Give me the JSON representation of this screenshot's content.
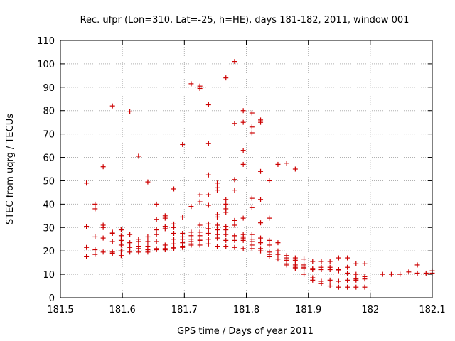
{
  "chart_data": {
    "type": "scatter",
    "title": "Rec. ufpr (Lon=310, Lat=-25, h=HE), days 181-182, 2011, window 001",
    "xlabel": "GPS time / Days of year 2011",
    "ylabel": "STEC from uqrg / TECUs",
    "xlim": [
      181.5,
      182.1
    ],
    "ylim": [
      0,
      110
    ],
    "xticks": [
      "181.5",
      "181.6",
      "181.7",
      "181.8",
      "181.9",
      "182",
      "182.1"
    ],
    "yticks": [
      "0",
      "10",
      "20",
      "30",
      "40",
      "50",
      "60",
      "70",
      "80",
      "90",
      "100",
      "110"
    ],
    "grid": true,
    "marker": "plus",
    "marker_color": "#cc0000",
    "series": [
      {
        "name": "STEC",
        "points": [
          [
            181.542,
            49
          ],
          [
            181.542,
            30.5
          ],
          [
            181.542,
            21.5
          ],
          [
            181.542,
            17.5
          ],
          [
            181.556,
            40
          ],
          [
            181.556,
            38
          ],
          [
            181.556,
            26
          ],
          [
            181.556,
            20.5
          ],
          [
            181.556,
            18.5
          ],
          [
            181.569,
            56
          ],
          [
            181.569,
            31
          ],
          [
            181.569,
            30
          ],
          [
            181.569,
            25.5
          ],
          [
            181.569,
            19.5
          ],
          [
            181.584,
            82
          ],
          [
            181.584,
            28
          ],
          [
            181.584,
            27.5
          ],
          [
            181.584,
            24
          ],
          [
            181.584,
            19.5
          ],
          [
            181.584,
            19
          ],
          [
            181.598,
            29
          ],
          [
            181.598,
            26.5
          ],
          [
            181.598,
            24.5
          ],
          [
            181.598,
            22.5
          ],
          [
            181.598,
            20
          ],
          [
            181.598,
            18
          ],
          [
            181.612,
            79.5
          ],
          [
            181.612,
            27
          ],
          [
            181.612,
            23.5
          ],
          [
            181.612,
            21.5
          ],
          [
            181.612,
            19.5
          ],
          [
            181.626,
            60.5
          ],
          [
            181.626,
            25
          ],
          [
            181.626,
            24
          ],
          [
            181.626,
            22
          ],
          [
            181.626,
            21
          ],
          [
            181.626,
            19.5
          ],
          [
            181.641,
            49.5
          ],
          [
            181.641,
            26
          ],
          [
            181.641,
            24
          ],
          [
            181.641,
            22
          ],
          [
            181.641,
            20.5
          ],
          [
            181.641,
            19.5
          ],
          [
            181.655,
            40
          ],
          [
            181.655,
            33.5
          ],
          [
            181.655,
            29
          ],
          [
            181.655,
            27
          ],
          [
            181.655,
            24
          ],
          [
            181.655,
            21
          ],
          [
            181.655,
            20.5
          ],
          [
            181.669,
            35
          ],
          [
            181.669,
            34
          ],
          [
            181.669,
            30.5
          ],
          [
            181.669,
            29.5
          ],
          [
            181.669,
            22.5
          ],
          [
            181.669,
            21
          ],
          [
            181.669,
            20.5
          ],
          [
            181.683,
            46.5
          ],
          [
            181.683,
            31.5
          ],
          [
            181.683,
            30
          ],
          [
            181.683,
            27.5
          ],
          [
            181.683,
            25
          ],
          [
            181.683,
            23
          ],
          [
            181.683,
            21.5
          ],
          [
            181.683,
            21
          ],
          [
            181.697,
            65.5
          ],
          [
            181.697,
            34.5
          ],
          [
            181.697,
            27.5
          ],
          [
            181.697,
            26
          ],
          [
            181.697,
            25
          ],
          [
            181.697,
            23.5
          ],
          [
            181.697,
            22
          ],
          [
            181.697,
            21.5
          ],
          [
            181.711,
            91.5
          ],
          [
            181.711,
            39
          ],
          [
            181.711,
            28
          ],
          [
            181.711,
            26.5
          ],
          [
            181.711,
            25
          ],
          [
            181.711,
            24
          ],
          [
            181.711,
            23
          ],
          [
            181.711,
            22.5
          ],
          [
            181.725,
            90.5
          ],
          [
            181.725,
            89.5
          ],
          [
            181.725,
            44
          ],
          [
            181.725,
            41
          ],
          [
            181.725,
            31
          ],
          [
            181.725,
            28
          ],
          [
            181.725,
            26.5
          ],
          [
            181.725,
            25
          ],
          [
            181.725,
            24.5
          ],
          [
            181.725,
            22.5
          ],
          [
            181.739,
            82.5
          ],
          [
            181.739,
            66
          ],
          [
            181.739,
            52.5
          ],
          [
            181.739,
            44
          ],
          [
            181.739,
            39.5
          ],
          [
            181.739,
            31.5
          ],
          [
            181.739,
            29.5
          ],
          [
            181.739,
            27.5
          ],
          [
            181.739,
            25
          ],
          [
            181.739,
            23
          ],
          [
            181.753,
            49
          ],
          [
            181.753,
            47
          ],
          [
            181.753,
            46
          ],
          [
            181.753,
            35.5
          ],
          [
            181.753,
            34.5
          ],
          [
            181.753,
            31
          ],
          [
            181.753,
            29
          ],
          [
            181.753,
            27
          ],
          [
            181.753,
            25.5
          ],
          [
            181.753,
            22
          ],
          [
            181.767,
            94
          ],
          [
            181.767,
            42
          ],
          [
            181.767,
            40
          ],
          [
            181.767,
            38
          ],
          [
            181.767,
            36.5
          ],
          [
            181.767,
            30.5
          ],
          [
            181.767,
            29
          ],
          [
            181.767,
            27
          ],
          [
            181.767,
            24.5
          ],
          [
            181.767,
            22
          ],
          [
            181.781,
            101
          ],
          [
            181.781,
            74.5
          ],
          [
            181.781,
            50.5
          ],
          [
            181.781,
            46
          ],
          [
            181.781,
            33
          ],
          [
            181.781,
            31
          ],
          [
            181.781,
            26.5
          ],
          [
            181.781,
            26
          ],
          [
            181.781,
            24.5
          ],
          [
            181.781,
            21.5
          ],
          [
            181.795,
            80
          ],
          [
            181.795,
            75
          ],
          [
            181.795,
            63
          ],
          [
            181.795,
            57
          ],
          [
            181.795,
            34
          ],
          [
            181.795,
            27
          ],
          [
            181.795,
            26
          ],
          [
            181.795,
            25.5
          ],
          [
            181.795,
            24.5
          ],
          [
            181.795,
            21
          ],
          [
            181.809,
            79
          ],
          [
            181.809,
            73
          ],
          [
            181.809,
            70.5
          ],
          [
            181.809,
            42.5
          ],
          [
            181.809,
            38.5
          ],
          [
            181.809,
            27
          ],
          [
            181.809,
            25
          ],
          [
            181.809,
            24
          ],
          [
            181.809,
            22.5
          ],
          [
            181.809,
            21
          ],
          [
            181.823,
            76
          ],
          [
            181.823,
            75
          ],
          [
            181.823,
            54
          ],
          [
            181.823,
            42
          ],
          [
            181.823,
            32
          ],
          [
            181.823,
            25.5
          ],
          [
            181.823,
            23.5
          ],
          [
            181.823,
            21
          ],
          [
            181.823,
            20
          ],
          [
            181.837,
            50
          ],
          [
            181.837,
            34
          ],
          [
            181.837,
            24.5
          ],
          [
            181.837,
            22.5
          ],
          [
            181.837,
            19.5
          ],
          [
            181.837,
            18.5
          ],
          [
            181.837,
            17.5
          ],
          [
            181.851,
            57
          ],
          [
            181.851,
            23.5
          ],
          [
            181.851,
            20
          ],
          [
            181.851,
            18.5
          ],
          [
            181.851,
            16.5
          ],
          [
            181.865,
            57.5
          ],
          [
            181.865,
            18
          ],
          [
            181.865,
            17
          ],
          [
            181.865,
            16
          ],
          [
            181.865,
            14.5
          ],
          [
            181.865,
            14
          ],
          [
            181.879,
            55
          ],
          [
            181.879,
            17
          ],
          [
            181.879,
            16
          ],
          [
            181.879,
            14
          ],
          [
            181.879,
            13
          ],
          [
            181.879,
            12.5
          ],
          [
            181.893,
            16.5
          ],
          [
            181.893,
            14
          ],
          [
            181.893,
            13
          ],
          [
            181.893,
            12.5
          ],
          [
            181.893,
            10
          ],
          [
            181.907,
            15.5
          ],
          [
            181.907,
            12.5
          ],
          [
            181.907,
            12
          ],
          [
            181.907,
            8.5
          ],
          [
            181.907,
            7.5
          ],
          [
            181.921,
            15.5
          ],
          [
            181.921,
            13
          ],
          [
            181.921,
            12
          ],
          [
            181.921,
            7
          ],
          [
            181.921,
            6
          ],
          [
            181.935,
            15.5
          ],
          [
            181.935,
            13
          ],
          [
            181.935,
            12
          ],
          [
            181.935,
            7.5
          ],
          [
            181.935,
            5
          ],
          [
            181.949,
            17
          ],
          [
            181.949,
            12
          ],
          [
            181.949,
            11.5
          ],
          [
            181.949,
            7
          ],
          [
            181.949,
            4.5
          ],
          [
            181.963,
            17
          ],
          [
            181.963,
            13
          ],
          [
            181.963,
            10.5
          ],
          [
            181.963,
            7.5
          ],
          [
            181.963,
            4.5
          ],
          [
            181.977,
            14.5
          ],
          [
            181.977,
            10
          ],
          [
            181.977,
            8
          ],
          [
            181.977,
            7.5
          ],
          [
            181.977,
            4.5
          ],
          [
            181.991,
            14.5
          ],
          [
            181.991,
            9
          ],
          [
            181.991,
            8
          ],
          [
            181.991,
            4.5
          ],
          [
            182.02,
            10
          ],
          [
            182.034,
            10
          ],
          [
            182.048,
            10
          ],
          [
            182.062,
            11
          ],
          [
            182.076,
            14
          ],
          [
            182.076,
            10.5
          ],
          [
            182.09,
            10.5
          ],
          [
            182.1,
            11.5
          ],
          [
            182.1,
            10.5
          ]
        ]
      }
    ]
  }
}
